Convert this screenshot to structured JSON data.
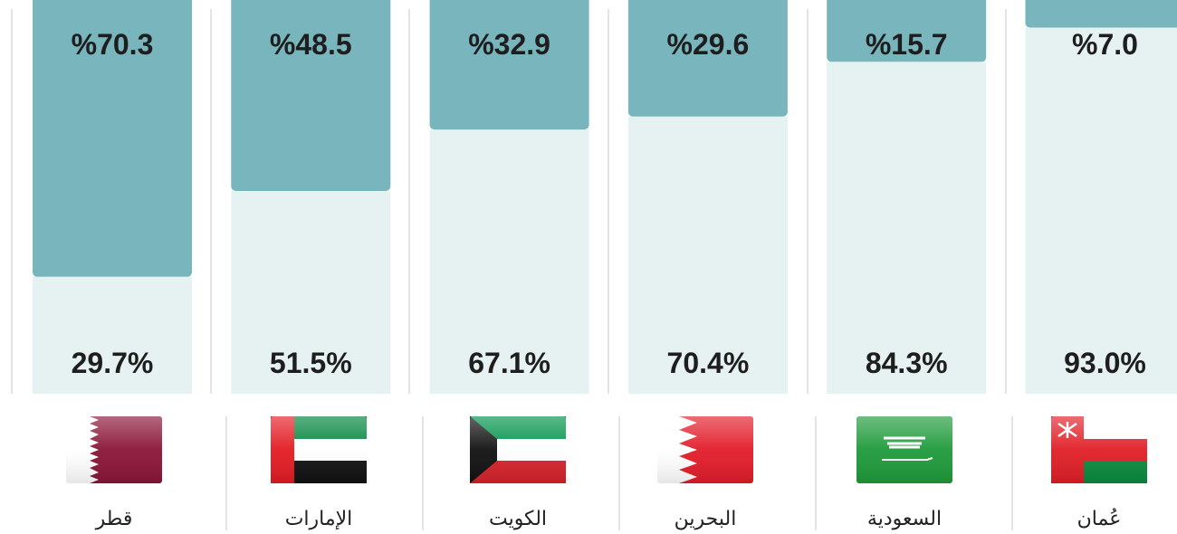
{
  "chart_data": {
    "type": "bar",
    "stacked": true,
    "categories": [
      "قطر",
      "الإمارات",
      "الكويت",
      "البحرين",
      "السعودية",
      "عُمان"
    ],
    "series": [
      {
        "color": "#79b5bd",
        "values": [
          70.3,
          48.5,
          32.9,
          29.6,
          15.7,
          7.0
        ],
        "value_labels": [
          "%70.3",
          "%48.5",
          "%32.9",
          "%29.6",
          "%15.7",
          "%7.0"
        ]
      },
      {
        "color": "#e6f1f2",
        "values": [
          29.7,
          51.5,
          67.1,
          70.4,
          84.3,
          93.0
        ],
        "value_labels": [
          "29.7%",
          "51.5%",
          "67.1%",
          "70.4%",
          "84.3%",
          "93.0%"
        ]
      }
    ]
  }
}
